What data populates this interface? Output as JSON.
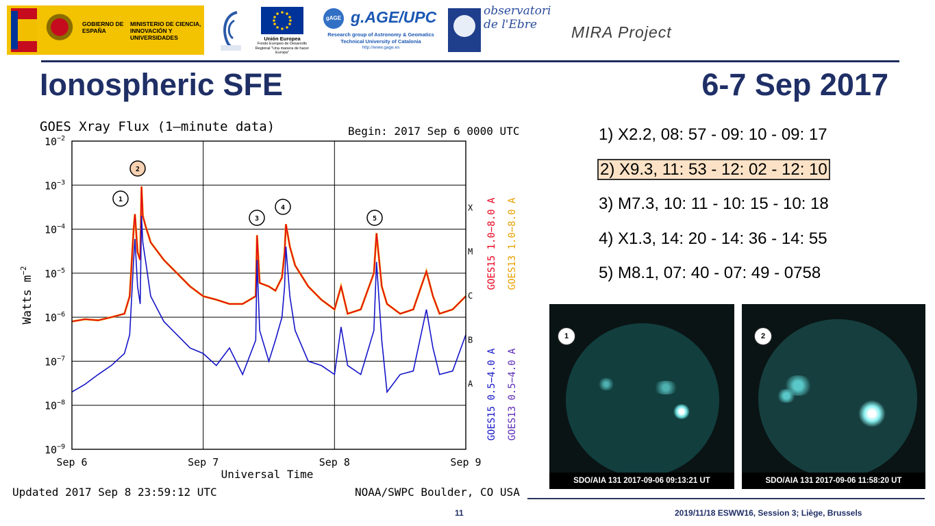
{
  "header": {
    "gov_line1": "GOBIERNO DE ESPAÑA",
    "gov_line2": "MINISTERIO DE CIENCIA, INNOVACIÓN Y UNIVERSIDADES",
    "eu_name": "Unión Europea",
    "eu_sub": "Fondo Europeo de Desarrollo Regional \"Una manera de hacer Europa\"",
    "gage_badge": "gAGE",
    "gage_title": "g.AGE/UPC",
    "gage_line1": "Research group of Astronomy & Geomatics",
    "gage_line2": "Technical University of Catalonia",
    "gage_line3": "http://www.gage.es",
    "obs_text": "observatori de l'Ebre",
    "project": "MIRA Project"
  },
  "slide": {
    "title_left": "Ionospheric SFE",
    "title_right": "6-7 Sep 2017",
    "page_number": "11",
    "footer": "2019/11/18 ESWW16, Session 3; Liège, Brussels"
  },
  "events": [
    {
      "label": "1) X2.2, 08: 57 - 09: 10 - 09: 17",
      "highlight": false
    },
    {
      "label": "2) X9.3, 11: 53 - 12: 02 - 12: 10",
      "highlight": true
    },
    {
      "label": "3) M7.3, 10: 11 - 10: 15 - 10: 18",
      "highlight": false
    },
    {
      "label": "4) X1.3, 14: 20 - 14: 36 - 14: 55",
      "highlight": false
    },
    {
      "label": "5) M8.1, 07: 40 - 07: 49 - 0758",
      "highlight": false
    }
  ],
  "images": [
    {
      "badge": "1",
      "caption": "SDO/AIA 131 2017-09-06 09:13:21 UT"
    },
    {
      "badge": "2",
      "caption": "SDO/AIA 131 2017-09-06 11:58:20 UT"
    }
  ],
  "chart_data": {
    "type": "line",
    "title": "GOES Xray Flux (1–minute data)",
    "begin": "Begin:  2017 Sep 6 0000 UTC",
    "xlabel": "Universal Time",
    "ylabel": "Watts m",
    "ylabel_sup": "−2",
    "y_scale": "log",
    "ylim": [
      1e-09,
      0.01
    ],
    "y_ticks": [
      {
        "base": "10",
        "exp": "−2"
      },
      {
        "base": "10",
        "exp": "−3"
      },
      {
        "base": "10",
        "exp": "−4"
      },
      {
        "base": "10",
        "exp": "−5"
      },
      {
        "base": "10",
        "exp": "−6"
      },
      {
        "base": "10",
        "exp": "−7"
      },
      {
        "base": "10",
        "exp": "−8"
      },
      {
        "base": "10",
        "exp": "−9"
      }
    ],
    "x_ticks": [
      "Sep 6",
      "Sep 7",
      "Sep 8",
      "Sep 9"
    ],
    "class_labels": [
      "X",
      "M",
      "C",
      "B",
      "A"
    ],
    "right_labels": [
      "GOES15 1.0−8.0 A",
      "GOES13 1.0−8.0 A",
      "GOES15 0.5−4.0 A",
      "GOES13 0.5−4.0 A"
    ],
    "right_colors": [
      "#e8001c",
      "#e8a000",
      "#1414c8",
      "#5a2ab4"
    ],
    "updated": "Updated 2017 Sep  8 23:59:12 UTC",
    "credit": "NOAA/SWPC Boulder, CO USA",
    "flare_markers": [
      {
        "label": "1",
        "day": 0.48,
        "color": "#ffffff"
      },
      {
        "label": "2",
        "day": 0.53,
        "color": "#f7d2b2"
      },
      {
        "label": "3",
        "day": 1.41,
        "color": "#ffffff"
      },
      {
        "label": "4",
        "day": 1.63,
        "color": "#ffffff"
      },
      {
        "label": "5",
        "day": 2.32,
        "color": "#ffffff"
      }
    ],
    "series": [
      {
        "name": "GOES15 1.0−8.0 A",
        "color": "#e8001c",
        "x": [
          0,
          0.1,
          0.2,
          0.3,
          0.4,
          0.44,
          0.47,
          0.48,
          0.5,
          0.52,
          0.53,
          0.54,
          0.56,
          0.6,
          0.7,
          0.8,
          0.9,
          1.0,
          1.1,
          1.2,
          1.3,
          1.4,
          1.41,
          1.43,
          1.5,
          1.55,
          1.6,
          1.62,
          1.63,
          1.66,
          1.7,
          1.8,
          1.9,
          2.0,
          2.05,
          2.1,
          2.2,
          2.3,
          2.32,
          2.36,
          2.4,
          2.5,
          2.6,
          2.7,
          2.75,
          2.8,
          2.9,
          3.0
        ],
        "y": [
          8e-07,
          9e-07,
          8.5e-07,
          1e-06,
          1.2e-06,
          3e-06,
          0.0001,
          0.00022,
          3e-05,
          2e-05,
          0.00093,
          0.0002,
          0.00012,
          5e-05,
          2e-05,
          1e-05,
          5e-06,
          3e-06,
          2.5e-06,
          2e-06,
          2e-06,
          3e-06,
          7.3e-05,
          6e-06,
          5e-06,
          4e-06,
          8e-06,
          3e-05,
          0.00013,
          4e-05,
          1.5e-05,
          5e-06,
          2.5e-06,
          1.5e-06,
          5e-06,
          1.2e-06,
          1.5e-06,
          1e-05,
          8.1e-05,
          5e-06,
          2e-06,
          1.2e-06,
          1.5e-06,
          1.1e-05,
          3e-06,
          1.2e-06,
          1.5e-06,
          3e-06
        ]
      },
      {
        "name": "GOES15 0.5−4.0 A",
        "color": "#1414c8",
        "x": [
          0,
          0.1,
          0.2,
          0.3,
          0.4,
          0.44,
          0.47,
          0.48,
          0.5,
          0.52,
          0.53,
          0.54,
          0.56,
          0.6,
          0.7,
          0.8,
          0.9,
          1.0,
          1.1,
          1.2,
          1.3,
          1.4,
          1.41,
          1.43,
          1.5,
          1.55,
          1.6,
          1.62,
          1.63,
          1.66,
          1.7,
          1.8,
          1.9,
          2.0,
          2.05,
          2.1,
          2.2,
          2.3,
          2.32,
          2.36,
          2.4,
          2.5,
          2.6,
          2.7,
          2.75,
          2.8,
          2.9,
          3.0
        ],
        "y": [
          2e-08,
          3e-08,
          5e-08,
          8e-08,
          1.5e-07,
          4e-07,
          2e-05,
          6e-05,
          5e-06,
          2e-06,
          0.0002,
          5e-05,
          2e-05,
          3e-06,
          8e-07,
          4e-07,
          2e-07,
          1.5e-07,
          8e-08,
          2e-07,
          5e-08,
          3e-07,
          2e-05,
          5e-07,
          1e-07,
          3e-07,
          1e-06,
          5e-06,
          4e-05,
          3e-06,
          5e-07,
          1e-07,
          8e-08,
          5e-08,
          6e-07,
          8e-08,
          5e-08,
          5e-07,
          1.8e-05,
          3e-07,
          2e-08,
          5e-08,
          6e-08,
          1.5e-06,
          2e-07,
          5e-08,
          6e-08,
          4e-07
        ]
      }
    ]
  }
}
